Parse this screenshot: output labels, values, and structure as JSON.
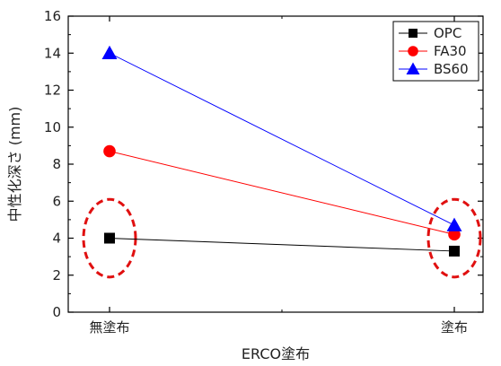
{
  "chart_data": {
    "type": "line",
    "categories": [
      "無塗布",
      "塗布"
    ],
    "xlabel": "ERCO塗布",
    "ylabel": "中性化深さ (mm)",
    "ylim": [
      0,
      16
    ],
    "yticks": [
      0,
      2,
      4,
      6,
      8,
      10,
      12,
      14,
      16
    ],
    "grid": false,
    "legend_position": "top-right",
    "series": [
      {
        "name": "OPC",
        "values": [
          4.0,
          3.3
        ],
        "color": "#000000",
        "marker": "square"
      },
      {
        "name": "FA30",
        "values": [
          8.7,
          4.2
        ],
        "color": "#ff0000",
        "marker": "circle"
      },
      {
        "name": "BS60",
        "values": [
          14.0,
          4.7
        ],
        "color": "#0000ff",
        "marker": "triangle"
      }
    ],
    "annotations": [
      {
        "shape": "dashed-ellipse",
        "color": "#e01010",
        "category": "無塗布",
        "y_range": [
          1.9,
          6.1
        ]
      },
      {
        "shape": "dashed-ellipse",
        "color": "#e01010",
        "category": "塗布",
        "y_range": [
          1.9,
          6.1
        ]
      }
    ]
  }
}
